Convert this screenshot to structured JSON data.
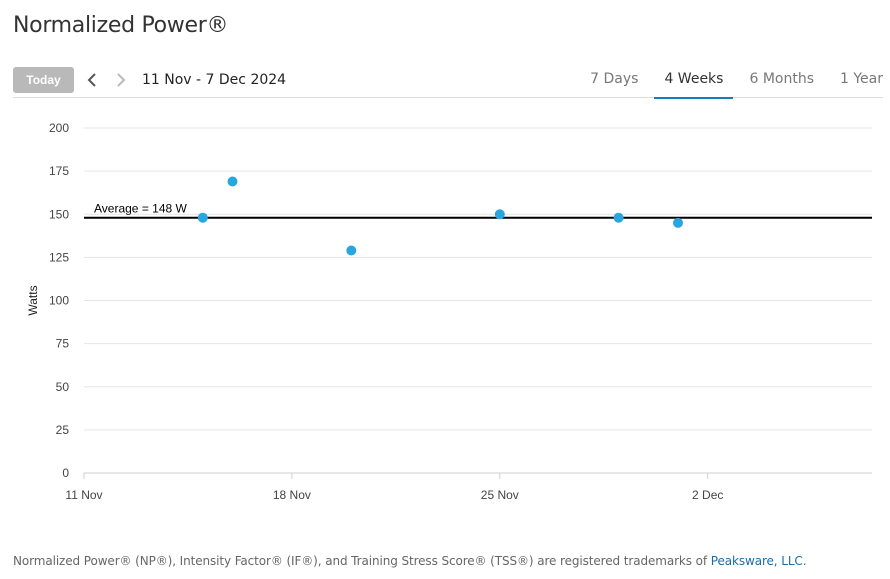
{
  "page": {
    "title": "Normalized Power®"
  },
  "toolbar": {
    "today_label": "Today",
    "date_range": "11 Nov - 7 Dec 2024",
    "prev_icon": "chevron-left-icon",
    "next_icon": "chevron-right-icon",
    "tabs": [
      {
        "label": "7 Days",
        "active": false
      },
      {
        "label": "4 Weeks",
        "active": true
      },
      {
        "label": "6 Months",
        "active": false
      },
      {
        "label": "1 Year",
        "active": false
      }
    ]
  },
  "colors": {
    "point": "#29a6e0",
    "accent": "#1a7bb8",
    "average_line": "#000000",
    "grid": "#e6e6e6"
  },
  "chart_data": {
    "type": "scatter",
    "xlabel": "",
    "ylabel": "Watts",
    "ylim": [
      0,
      200
    ],
    "yticks": [
      0,
      25,
      50,
      75,
      100,
      125,
      150,
      175,
      200
    ],
    "xlim": [
      "2024-11-11",
      "2024-12-07"
    ],
    "xticks": [
      {
        "date": "2024-11-11",
        "label": "11 Nov"
      },
      {
        "date": "2024-11-18",
        "label": "18 Nov"
      },
      {
        "date": "2024-11-25",
        "label": "25 Nov"
      },
      {
        "date": "2024-12-02",
        "label": "2 Dec"
      }
    ],
    "grid": true,
    "series": [
      {
        "points": [
          {
            "x": "2024-11-15",
            "y": 148
          },
          {
            "x": "2024-11-16",
            "y": 169
          },
          {
            "x": "2024-11-20",
            "y": 129
          },
          {
            "x": "2024-11-25",
            "y": 150
          },
          {
            "x": "2024-11-29",
            "y": 148
          },
          {
            "x": "2024-12-01",
            "y": 145
          }
        ]
      }
    ],
    "average": {
      "value": 148,
      "label": "Average = 148 W"
    }
  },
  "footer": {
    "text": "Normalized Power® (NP®), Intensity Factor® (IF®), and Training Stress Score® (TSS®) are registered trademarks of ",
    "link_text": "Peaksware, LLC",
    "suffix": "."
  }
}
